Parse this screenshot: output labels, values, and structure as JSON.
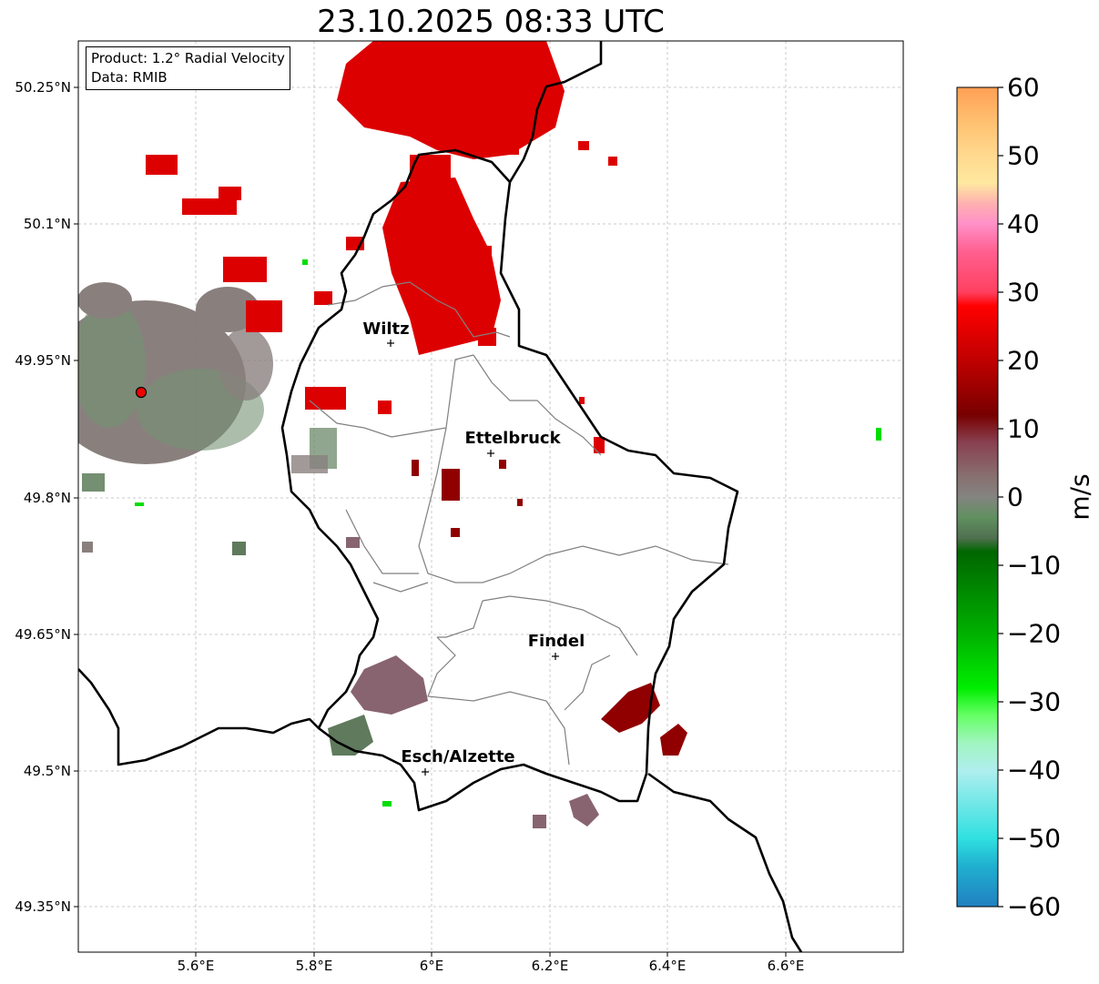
{
  "title": "23.10.2025 08:33 UTC",
  "info": {
    "product": "Product: 1.2° Radial Velocity",
    "source": "Data: RMIB"
  },
  "axes": {
    "lat_ticks": [
      "50.25°N",
      "50.1°N",
      "49.95°N",
      "49.8°N",
      "49.65°N",
      "49.5°N",
      "49.35°N"
    ],
    "lon_ticks": [
      "5.6°E",
      "5.8°E",
      "6°E",
      "6.2°E",
      "6.4°E",
      "6.6°E"
    ]
  },
  "cities": [
    {
      "name": "Wiltz"
    },
    {
      "name": "Ettelbruck"
    },
    {
      "name": "Findel"
    },
    {
      "name": "Esch/Alzette"
    }
  ],
  "radar_site": {
    "marker": "red-circle"
  },
  "colorbar": {
    "unit": "m/s",
    "ticks": [
      "60",
      "50",
      "40",
      "30",
      "20",
      "10",
      "0",
      "−10",
      "−20",
      "−30",
      "−40",
      "−50",
      "−60"
    ],
    "stops": [
      {
        "v": 60,
        "color": "#ff9f55"
      },
      {
        "v": 55,
        "color": "#ffc070"
      },
      {
        "v": 50,
        "color": "#ffd98f"
      },
      {
        "v": 46,
        "color": "#ffe8a0"
      },
      {
        "v": 43,
        "color": "#ffb0b0"
      },
      {
        "v": 40,
        "color": "#ff90c8"
      },
      {
        "v": 36,
        "color": "#ff6090"
      },
      {
        "v": 30,
        "color": "#ff4060"
      },
      {
        "v": 28,
        "color": "#ff0000"
      },
      {
        "v": 20,
        "color": "#c00000"
      },
      {
        "v": 12,
        "color": "#780000"
      },
      {
        "v": 8,
        "color": "#884050"
      },
      {
        "v": 3,
        "color": "#887070"
      },
      {
        "v": 0,
        "color": "#848480"
      },
      {
        "v": -3,
        "color": "#609060"
      },
      {
        "v": -6,
        "color": "#507050"
      },
      {
        "v": -8,
        "color": "#006600"
      },
      {
        "v": -20,
        "color": "#00b000"
      },
      {
        "v": -28,
        "color": "#00ee00"
      },
      {
        "v": -32,
        "color": "#66ff66"
      },
      {
        "v": -36,
        "color": "#a0f5c0"
      },
      {
        "v": -40,
        "color": "#b0eeee"
      },
      {
        "v": -50,
        "color": "#30e0e0"
      },
      {
        "v": -54,
        "color": "#20b0d0"
      },
      {
        "v": -60,
        "color": "#2080c0"
      }
    ]
  },
  "colors": {
    "approaching": "#00cc00",
    "receding": "#dd0000",
    "near_zero": "#888080",
    "border": "#000000",
    "canton_line": "#808080",
    "grid": "#bbbbbb"
  }
}
